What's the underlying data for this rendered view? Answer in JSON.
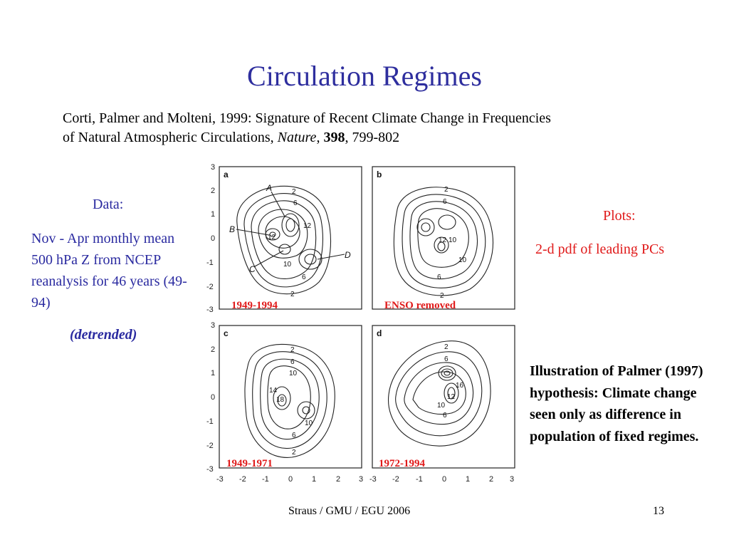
{
  "title": "Circulation Regimes",
  "citation": {
    "line1": "Corti, Palmer and Molteni, 1999: Signature of Recent Climate Change in Frequencies",
    "line2_start": "of Natural Atmospheric Circulations, ",
    "journal": "Nature",
    "sep1": ", ",
    "volume": "398",
    "pages": ", 799-802"
  },
  "data_box": {
    "heading": "Data:",
    "description": "Nov - Apr monthly mean 500 hPa Z from NCEP reanalysis for 46 years (49-94)",
    "note": "(detrended)"
  },
  "plots_box": {
    "heading": "Plots:",
    "description": "2-d pdf of leading PCs"
  },
  "illustration": "Illustration of Palmer (1997) hypothesis: Climate change seen only as difference in population of fixed regimes.",
  "figure": {
    "axis_ticks": [
      "3",
      "2",
      "1",
      "0",
      "-1",
      "-2",
      "-3"
    ],
    "x_ticks": [
      "-3",
      "-2",
      "-1",
      "0",
      "1",
      "2",
      "3"
    ],
    "panels": [
      {
        "letter": "a",
        "caption": "1949-1994",
        "contour_labels": [
          "2",
          "6",
          "12",
          "12",
          "10",
          "6",
          "2"
        ],
        "regime_labels": [
          "A",
          "B",
          "C",
          "D"
        ]
      },
      {
        "letter": "b",
        "caption": "ENSO removed",
        "contour_labels": [
          "2",
          "6",
          "12",
          "10",
          "10",
          "6",
          "2"
        ]
      },
      {
        "letter": "c",
        "caption": "1949-1971",
        "contour_labels": [
          "2",
          "6",
          "10",
          "14",
          "18",
          "10",
          "6",
          "2"
        ]
      },
      {
        "letter": "d",
        "caption": "1972-1994",
        "contour_labels": [
          "2",
          "6",
          "16",
          "12",
          "10",
          "6"
        ]
      }
    ]
  },
  "footer": "Straus / GMU / EGU 2006",
  "page_number": "13"
}
